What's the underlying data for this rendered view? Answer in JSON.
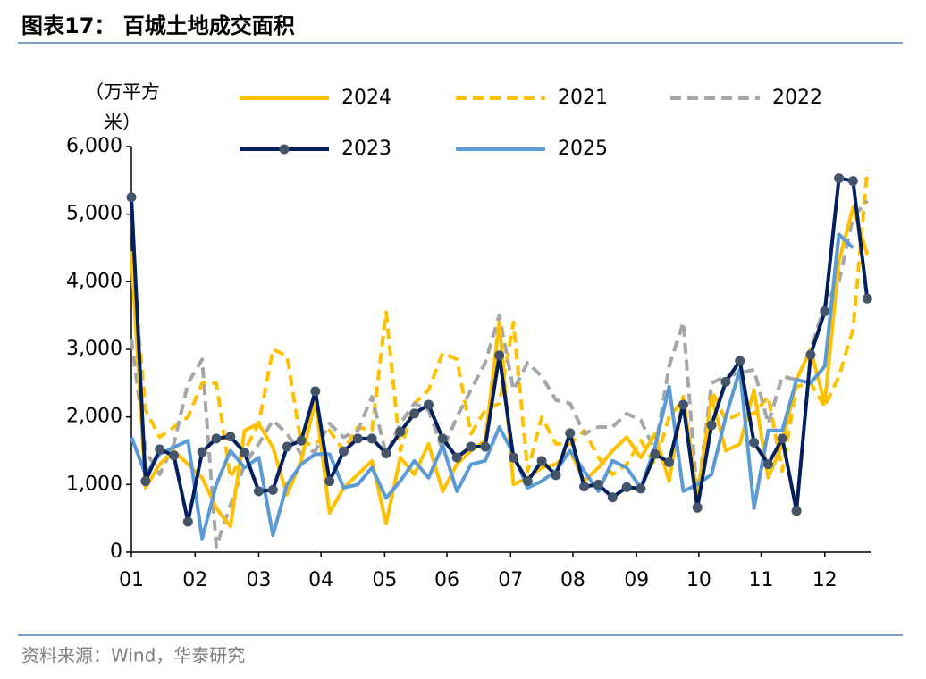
{
  "chart_data": {
    "type": "line",
    "title": "图表17：  百城土地成交面积",
    "y_label": "（万平方米）",
    "source": "资料来源：Wind，华泰研究",
    "x": [
      1,
      2,
      3,
      4,
      5,
      6,
      7,
      8,
      9,
      10,
      11,
      12,
      13,
      14,
      15,
      16,
      17,
      18,
      19,
      20,
      21,
      22,
      23,
      24,
      25,
      26,
      27,
      28,
      29,
      30,
      31,
      32,
      33,
      34,
      35,
      36,
      37,
      38,
      39,
      40,
      41,
      42,
      43,
      44,
      45,
      46,
      47,
      48,
      49,
      50,
      51,
      52,
      53
    ],
    "xlim": [
      1,
      53.3
    ],
    "xticks": [
      {
        "value": 1,
        "label": "01"
      },
      {
        "value": 5.5,
        "label": "02"
      },
      {
        "value": 10,
        "label": "03"
      },
      {
        "value": 14.4,
        "label": "04"
      },
      {
        "value": 18.9,
        "label": "05"
      },
      {
        "value": 23.3,
        "label": "06"
      },
      {
        "value": 27.8,
        "label": "07"
      },
      {
        "value": 32.2,
        "label": "08"
      },
      {
        "value": 36.7,
        "label": "09"
      },
      {
        "value": 41.1,
        "label": "10"
      },
      {
        "value": 45.5,
        "label": "11"
      },
      {
        "value": 50,
        "label": "12"
      }
    ],
    "ylim": [
      0,
      6000
    ],
    "yticks": [
      0,
      {
        "value": 1000,
        "label": "1,000"
      },
      {
        "value": 2000,
        "label": "2,000"
      },
      {
        "value": 3000,
        "label": "3,000"
      },
      {
        "value": 4000,
        "label": "4,000"
      },
      {
        "value": 5000,
        "label": "5,000"
      },
      {
        "value": 6000,
        "label": "6,000"
      }
    ],
    "series": [
      {
        "name": "2024",
        "color": "#FFC000",
        "dash": false,
        "marker": false,
        "values": [
          4400,
          950,
          1300,
          1500,
          1300,
          1100,
          650,
          380,
          1800,
          1900,
          1550,
          850,
          1350,
          2250,
          580,
          950,
          1150,
          1350,
          420,
          1400,
          1150,
          1600,
          900,
          1300,
          1500,
          1650,
          3400,
          1000,
          1100,
          1250,
          1300,
          1500,
          1050,
          1250,
          1500,
          1700,
          1400,
          1750,
          1050,
          2300,
          800,
          2300,
          1500,
          1600,
          2400,
          1100,
          1600,
          2550,
          3000,
          2200,
          4300,
          5100,
          4400
        ]
      },
      {
        "name": "2021",
        "color": "#FFC000",
        "dash": true,
        "marker": false,
        "values": [
          4450,
          2100,
          1700,
          1850,
          2000,
          2500,
          2500,
          1100,
          1500,
          1900,
          3000,
          2900,
          1600,
          1600,
          1800,
          1500,
          1850,
          1800,
          3550,
          1500,
          2200,
          2400,
          2950,
          2850,
          1750,
          2100,
          2200,
          3400,
          1200,
          2000,
          1600,
          1600,
          1800,
          1400,
          1150,
          1300,
          1650,
          1300,
          2000,
          2250,
          600,
          2400,
          1950,
          2050,
          2050,
          2300,
          1200,
          2450,
          2500,
          2150,
          2600,
          3300,
          5650
        ]
      },
      {
        "name": "2022",
        "color": "#A6A6A6",
        "dash": true,
        "marker": false,
        "values": [
          3150,
          1500,
          1150,
          1600,
          2500,
          2850,
          80,
          700,
          1300,
          1600,
          1950,
          1750,
          1450,
          1500,
          1900,
          1700,
          1800,
          2300,
          1450,
          1900,
          2200,
          2100,
          1500,
          2000,
          2400,
          2800,
          3500,
          2400,
          2800,
          2600,
          2250,
          2200,
          1750,
          1850,
          1850,
          2050,
          1950,
          1500,
          2750,
          3400,
          800,
          2500,
          2600,
          2650,
          2700,
          1900,
          2600,
          2550,
          3000,
          3650,
          4000,
          4950,
          5200
        ]
      },
      {
        "name": "2023",
        "color": "#002060",
        "dash": false,
        "marker": true,
        "marker_color": "#44546A",
        "values": [
          5250,
          1050,
          1520,
          1430,
          450,
          1480,
          1680,
          1710,
          1470,
          900,
          920,
          1560,
          1650,
          2380,
          1050,
          1490,
          1680,
          1680,
          1460,
          1780,
          2050,
          2180,
          1680,
          1400,
          1560,
          1560,
          2910,
          1400,
          1050,
          1350,
          1140,
          1760,
          970,
          1000,
          810,
          960,
          940,
          1450,
          1330,
          2180,
          660,
          1880,
          2520,
          2830,
          1620,
          1300,
          1680,
          610,
          2920,
          3560,
          5530,
          5490,
          3750
        ]
      },
      {
        "name": "2025",
        "color": "#5B9BD5",
        "dash": false,
        "marker": false,
        "values": [
          1700,
          1150,
          1450,
          1550,
          1650,
          200,
          1000,
          1500,
          1250,
          1400,
          250,
          1000,
          1300,
          1450,
          1450,
          950,
          1000,
          1250,
          800,
          1050,
          1350,
          1100,
          1580,
          900,
          1300,
          1350,
          1850,
          1450,
          950,
          1050,
          1200,
          1500,
          1200,
          900,
          1350,
          1250,
          950,
          1550,
          2450,
          900,
          1000,
          1150,
          2000,
          2700,
          650,
          1800,
          1800,
          2550,
          2500,
          2750,
          4700,
          4500,
          null
        ]
      }
    ]
  }
}
